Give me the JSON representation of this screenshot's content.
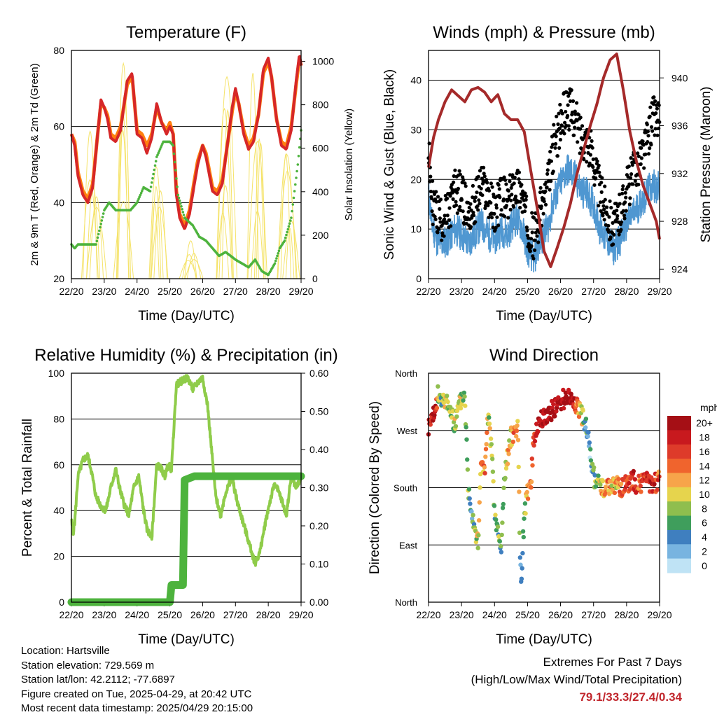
{
  "chart_data": [
    {
      "type": "line",
      "title": "Temperature (F)",
      "xlabel": "Time (Day/UTC)",
      "ylabel": "2m & 9m T (Red, Orange) & 2m Td (Green)",
      "y2label": "Solar Insolation (Yellow)",
      "ylim": [
        20,
        80
      ],
      "y2lim": [
        0,
        1050
      ],
      "xticks": [
        "22/20",
        "23/20",
        "24/20",
        "25/20",
        "26/20",
        "27/20",
        "28/20",
        "29/20"
      ],
      "yticks": [
        20,
        40,
        60,
        80
      ],
      "y2ticks": [
        0,
        200,
        400,
        600,
        800,
        1000
      ],
      "grid": true,
      "series": [
        {
          "role": "T2m",
          "color": "#d62728",
          "x": [
            0,
            0.1,
            0.2,
            0.35,
            0.5,
            0.65,
            0.8,
            0.9,
            1,
            1.1,
            1.2,
            1.35,
            1.5,
            1.7,
            1.85,
            2,
            2.15,
            2.3,
            2.45,
            2.6,
            2.75,
            2.9,
            3,
            3.1,
            3.2,
            3.3,
            3.45,
            3.6,
            3.75,
            3.85,
            4,
            4.1,
            4.3,
            4.45,
            4.6,
            4.75,
            4.9,
            5,
            5.1,
            5.25,
            5.4,
            5.55,
            5.7,
            5.85,
            6,
            6.1,
            6.25,
            6.4,
            6.55,
            6.7,
            6.85,
            6.95,
            7
          ],
          "y": [
            58,
            55,
            47,
            42,
            40,
            44,
            58,
            67,
            65,
            62,
            57,
            56,
            59,
            72,
            74,
            58,
            57,
            53,
            57,
            66,
            61,
            58,
            60,
            58,
            42,
            36,
            33,
            37,
            45,
            50,
            55,
            52,
            43,
            42,
            45,
            55,
            65,
            70,
            66,
            58,
            54,
            56,
            63,
            75,
            78,
            73,
            62,
            55,
            54,
            59,
            72,
            79,
            76
          ]
        },
        {
          "role": "T9m",
          "color": "#ff7f0e",
          "x": [
            0,
            0.1,
            0.2,
            0.35,
            0.5,
            0.65,
            0.8,
            0.9,
            1,
            1.1,
            1.2,
            1.35,
            1.5,
            1.7,
            1.85,
            2,
            2.15,
            2.3,
            2.45,
            2.6,
            2.75,
            2.9,
            3,
            3.1,
            3.2,
            3.3,
            3.45,
            3.6,
            3.75,
            3.85,
            4,
            4.1,
            4.3,
            4.45,
            4.6,
            4.75,
            4.9,
            5,
            5.1,
            5.25,
            5.4,
            5.55,
            5.7,
            5.85,
            6,
            6.1,
            6.25,
            6.4,
            6.55,
            6.7,
            6.85,
            6.95,
            7
          ],
          "y": [
            58,
            56,
            48,
            43,
            41,
            45,
            58,
            66,
            65,
            63,
            58,
            57,
            60,
            71,
            73,
            59,
            58,
            55,
            58,
            65,
            61,
            59,
            61,
            58,
            43,
            37,
            34,
            38,
            46,
            51,
            55,
            53,
            44,
            43,
            46,
            55,
            64,
            69,
            66,
            59,
            55,
            57,
            63,
            74,
            77,
            73,
            62,
            56,
            55,
            60,
            71,
            78,
            76
          ]
        },
        {
          "role": "Td2m",
          "color": "#4db33d",
          "x": [
            0,
            0.1,
            0.2,
            0.5,
            0.75,
            1,
            1.15,
            1.35,
            1.5,
            1.8,
            2,
            2.2,
            2.4,
            2.6,
            2.8,
            3,
            3.1,
            3.25,
            3.45,
            3.7,
            3.9,
            4.1,
            4.3,
            4.5,
            4.7,
            4.85,
            5,
            5.2,
            5.4,
            5.6,
            5.8,
            6,
            6.2,
            6.35,
            6.5,
            6.7,
            6.9,
            7
          ],
          "y": [
            29,
            28,
            29,
            29,
            29,
            38,
            40,
            38,
            38,
            38,
            40,
            44,
            43,
            52,
            56,
            56,
            55,
            42,
            36,
            34,
            31,
            30,
            28,
            26,
            27,
            26,
            25,
            24,
            23,
            25,
            22,
            21,
            24,
            28,
            30,
            36,
            50,
            59
          ]
        }
      ],
      "solar_daily_peaks": [
        1040,
        980,
        1000,
        560,
        180,
        950,
        1020,
        650
      ]
    },
    {
      "type": "scatter",
      "title": "Winds (mph) & Pressure (mb)",
      "xlabel": "Time (Day/UTC)",
      "ylabel": "Sonic Wind & Gust (Blue, Black)",
      "y2label": "Station Pressure (Maroon)",
      "ylim": [
        0,
        46
      ],
      "y2lim": [
        923.2,
        942.3
      ],
      "xticks": [
        "22/20",
        "23/20",
        "24/20",
        "25/20",
        "26/20",
        "27/20",
        "28/20",
        "29/20"
      ],
      "yticks": [
        0,
        10,
        20,
        30,
        40
      ],
      "y2ticks": [
        924,
        928,
        932,
        936,
        940
      ],
      "grid": true,
      "series": [
        {
          "role": "wind",
          "color": "#4f97d1",
          "x": [
            0,
            0.1,
            0.25,
            0.4,
            0.6,
            0.8,
            1,
            1.2,
            1.4,
            1.6,
            1.8,
            2,
            2.2,
            2.4,
            2.6,
            2.8,
            3,
            3.2,
            3.4,
            3.6,
            3.8,
            4,
            4.2,
            4.4,
            4.6,
            4.8,
            5,
            5.2,
            5.4,
            5.6,
            5.8,
            6,
            6.2,
            6.4,
            6.6,
            6.8,
            7
          ],
          "y": [
            17,
            11,
            8,
            7,
            8,
            10,
            9,
            7,
            9,
            11,
            9,
            8,
            10,
            9,
            12,
            11,
            6,
            4,
            8,
            10,
            16,
            19,
            22,
            21,
            18,
            17,
            15,
            10,
            8,
            6,
            8,
            11,
            13,
            15,
            17,
            19,
            18
          ]
        },
        {
          "role": "gust",
          "color": "#000000",
          "x": [
            0,
            0.1,
            0.25,
            0.4,
            0.6,
            0.8,
            1,
            1.2,
            1.4,
            1.6,
            1.8,
            2,
            2.2,
            2.4,
            2.6,
            2.8,
            3,
            3.2,
            3.4,
            3.6,
            3.8,
            4,
            4.2,
            4.4,
            4.6,
            4.8,
            5,
            5.2,
            5.4,
            5.6,
            5.8,
            6,
            6.2,
            6.4,
            6.6,
            6.8,
            7
          ],
          "y": [
            25,
            16,
            13,
            12,
            13,
            18,
            17,
            13,
            15,
            19,
            17,
            13,
            17,
            15,
            19,
            18,
            11,
            8,
            14,
            18,
            27,
            31,
            35,
            33,
            29,
            28,
            24,
            17,
            14,
            10,
            13,
            18,
            21,
            24,
            27,
            33,
            32
          ]
        },
        {
          "role": "pressure",
          "color": "#a52a2a",
          "x": [
            0,
            0.15,
            0.3,
            0.5,
            0.7,
            0.9,
            1.1,
            1.3,
            1.5,
            1.7,
            1.9,
            2.1,
            2.3,
            2.5,
            2.7,
            2.9,
            3.1,
            3.3,
            3.5,
            3.7,
            3.9,
            4.1,
            4.3,
            4.5,
            4.7,
            4.9,
            5.1,
            5.3,
            5.5,
            5.7,
            5.9,
            6.1,
            6.3,
            6.5,
            6.7,
            6.9,
            7
          ],
          "y": [
            932.5,
            935,
            936.5,
            938,
            939,
            938.5,
            938,
            939,
            939.2,
            938.8,
            938,
            938.6,
            937,
            936.5,
            936.5,
            935.5,
            932.2,
            929,
            925.5,
            924.2,
            925.8,
            927.5,
            929.5,
            932,
            934,
            936,
            937.8,
            940,
            941.5,
            942,
            939,
            935.5,
            933,
            931,
            929.5,
            928,
            926.5
          ]
        }
      ]
    },
    {
      "type": "line",
      "title": "Relative Humidity (%) & Precipitation (in)",
      "xlabel": "Time (Day/UTC)",
      "ylabel": "Percent & Total Rainfall",
      "ylim": [
        0,
        100
      ],
      "y2lim": [
        0,
        0.6
      ],
      "xticks": [
        "22/20",
        "23/20",
        "24/20",
        "25/20",
        "26/20",
        "27/20",
        "28/20",
        "29/20"
      ],
      "yticks": [
        0,
        20,
        40,
        60,
        80,
        100
      ],
      "y2ticks": [
        "0.00",
        "0.10",
        "0.20",
        "0.30",
        "0.40",
        "0.50",
        "0.60"
      ],
      "grid": true,
      "series": [
        {
          "role": "rh",
          "color": "#8fcc4a",
          "x": [
            0,
            0.05,
            0.1,
            0.2,
            0.35,
            0.5,
            0.6,
            0.75,
            0.9,
            1.05,
            1.2,
            1.35,
            1.5,
            1.6,
            1.75,
            1.9,
            2.05,
            2.2,
            2.3,
            2.45,
            2.6,
            2.75,
            2.85,
            2.95,
            3.05,
            3.2,
            3.4,
            3.55,
            3.7,
            3.85,
            4,
            4.15,
            4.3,
            4.4,
            4.55,
            4.7,
            4.9,
            5.05,
            5.25,
            5.45,
            5.6,
            5.75,
            5.9,
            6.05,
            6.2,
            6.4,
            6.55,
            6.7,
            6.85,
            7
          ],
          "y": [
            36,
            30,
            35,
            55,
            62,
            64,
            58,
            46,
            42,
            40,
            50,
            58,
            48,
            43,
            38,
            50,
            55,
            40,
            32,
            28,
            60,
            58,
            55,
            60,
            58,
            95,
            97,
            98,
            93,
            96,
            98,
            86,
            62,
            46,
            38,
            48,
            54,
            44,
            34,
            24,
            17,
            22,
            34,
            44,
            52,
            45,
            38,
            55,
            50,
            55
          ]
        },
        {
          "role": "precip",
          "color": "#4db33d",
          "x": [
            0,
            3.0,
            3.05,
            3.4,
            3.45,
            3.6,
            3.75,
            4.0,
            5.0,
            7.0
          ],
          "y": [
            0,
            0,
            0.045,
            0.045,
            0.32,
            0.325,
            0.33,
            0.33,
            0.33,
            0.33
          ]
        }
      ]
    },
    {
      "type": "scatter",
      "title": "Wind Direction",
      "xlabel": "Time (Day/UTC)",
      "ylabel": "Direction (Colored By Speed)",
      "xticks": [
        "22/20",
        "23/20",
        "24/20",
        "25/20",
        "26/20",
        "27/20",
        "28/20",
        "29/20"
      ],
      "yticks": [
        "North",
        "East",
        "South",
        "West",
        "North"
      ],
      "ylim": [
        0,
        360
      ],
      "grid": true,
      "colorbar": {
        "title": "mph",
        "labels": [
          "20+",
          "18",
          "16",
          "14",
          "12",
          "10",
          "8",
          "6",
          "4",
          "2",
          "0"
        ],
        "colors": [
          "#a50f15",
          "#c8191e",
          "#de3b2a",
          "#f0642d",
          "#f7a44a",
          "#e6d44d",
          "#8fbe4e",
          "#3f9e5c",
          "#3f7fbf",
          "#78b4e0",
          "#bfe3f5"
        ]
      },
      "series": [
        {
          "role": "direction",
          "x": [
            0,
            0.1,
            0.2,
            0.3,
            0.4,
            0.5,
            0.6,
            0.7,
            0.8,
            0.9,
            1.0,
            1.1,
            1.2,
            1.3,
            1.4,
            1.5,
            1.6,
            1.7,
            1.8,
            1.9,
            2.0,
            2.1,
            2.2,
            2.3,
            2.4,
            2.5,
            2.6,
            2.7,
            2.8,
            2.9,
            3.0,
            3.1,
            3.2,
            3.3,
            3.4,
            3.5,
            3.6,
            3.7,
            3.8,
            3.9,
            4.0,
            4.1,
            4.2,
            4.3,
            4.4,
            4.5,
            4.6,
            4.7,
            4.8,
            4.9,
            5.0,
            5.1,
            5.2,
            5.3,
            5.4,
            5.5,
            5.6,
            5.7,
            5.8,
            5.9,
            6.0,
            6.1,
            6.2,
            6.3,
            6.4,
            6.5,
            6.6,
            6.7,
            6.8,
            6.9,
            7.0
          ],
          "y": [
            275,
            285,
            300,
            330,
            310,
            320,
            315,
            290,
            280,
            305,
            320,
            330,
            180,
            150,
            120,
            90,
            230,
            200,
            290,
            250,
            140,
            110,
            80,
            200,
            230,
            260,
            270,
            280,
            20,
            140,
            170,
            190,
            260,
            280,
            285,
            290,
            295,
            300,
            305,
            310,
            315,
            320,
            325,
            320,
            315,
            310,
            300,
            285,
            270,
            230,
            200,
            180,
            190,
            175,
            180,
            185,
            180,
            190,
            175,
            180,
            185,
            190,
            195,
            180,
            185,
            190,
            195,
            185,
            180,
            190,
            195
          ],
          "speed": [
            18,
            19,
            20,
            8,
            6,
            10,
            7,
            8,
            9,
            10,
            8,
            7,
            9,
            4,
            8,
            10,
            12,
            14,
            9,
            11,
            6,
            8,
            5,
            9,
            12,
            10,
            14,
            13,
            3,
            8,
            12,
            14,
            16,
            18,
            19,
            20,
            20,
            20,
            20,
            20,
            20,
            20,
            20,
            20,
            18,
            14,
            12,
            6,
            4,
            3,
            5,
            8,
            10,
            12,
            14,
            12,
            10,
            12,
            14,
            16,
            16,
            16,
            18,
            16,
            14,
            16,
            18,
            16,
            18,
            16,
            14
          ]
        }
      ]
    }
  ],
  "info": {
    "location": "Location: Hartsville",
    "elevation": "Station elevation: 729.569 m",
    "latlon": "Station lat/lon: 42.2112; -77.6897",
    "created": "Figure created on Tue, 2025-04-29, at 20:42 UTC",
    "recent": "Most recent data timestamp: 2025/04/29 20:15:00"
  },
  "extremes": {
    "title": "Extremes For Past 7 Days",
    "subtitle": "(High/Low/Max Wind/Total Precipitation)",
    "values": "79.1/33.3/27.4/0.34"
  }
}
